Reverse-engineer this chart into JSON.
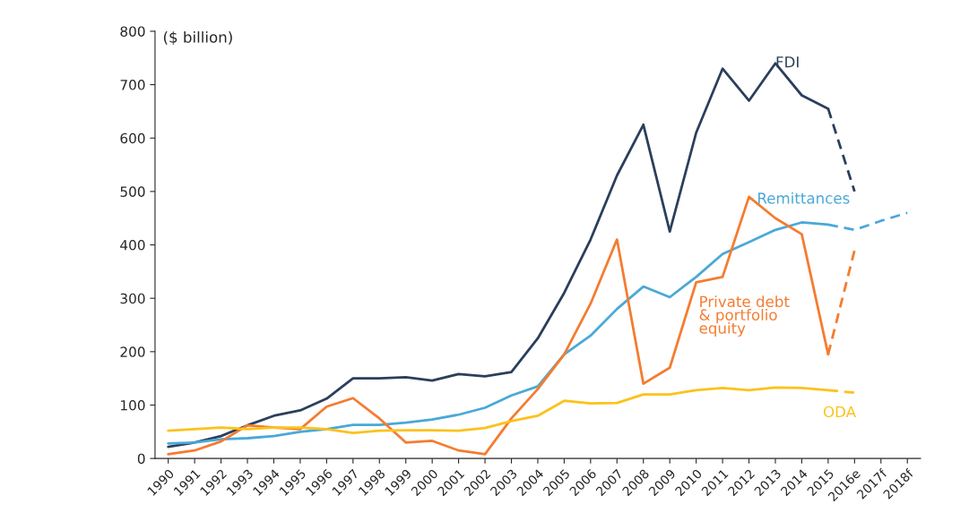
{
  "chart_data": {
    "type": "line",
    "ylabel": "($ billion)",
    "categories": [
      "1990",
      "1991",
      "1992",
      "1993",
      "1994",
      "1995",
      "1996",
      "1997",
      "1998",
      "1999",
      "2000",
      "2001",
      "2002",
      "2003",
      "2004",
      "2005",
      "2006",
      "2007",
      "2008",
      "2009",
      "2010",
      "2011",
      "2012",
      "2013",
      "2014",
      "2015",
      "2016e",
      "2017f",
      "2018f"
    ],
    "ylim": [
      0,
      800
    ],
    "yticks": [
      0,
      100,
      200,
      300,
      400,
      500,
      600,
      700,
      800
    ],
    "grid": false,
    "legend": false,
    "marker": "none",
    "series": [
      {
        "name": "FDI",
        "color": "#2b3f5c",
        "line_style": "solid",
        "values": [
          22,
          30,
          42,
          62,
          80,
          90,
          112,
          150,
          150,
          152,
          146,
          158,
          154,
          162,
          225,
          310,
          410,
          530,
          625,
          425,
          610,
          730,
          670,
          740,
          680,
          655,
          null,
          null,
          null
        ]
      },
      {
        "color": "#2b3f5c",
        "line_style": "dashed",
        "values": [
          null,
          null,
          null,
          null,
          null,
          null,
          null,
          null,
          null,
          null,
          null,
          null,
          null,
          null,
          null,
          null,
          null,
          null,
          null,
          null,
          null,
          null,
          null,
          null,
          null,
          655,
          500,
          null,
          null
        ]
      },
      {
        "name": "Remittances",
        "color": "#4aa8d8",
        "line_style": "solid",
        "values": [
          28,
          30,
          36,
          38,
          42,
          50,
          55,
          63,
          63,
          67,
          73,
          82,
          95,
          118,
          135,
          195,
          230,
          280,
          322,
          302,
          340,
          383,
          405,
          428,
          442,
          438,
          null,
          null,
          null
        ]
      },
      {
        "color": "#4aa8d8",
        "line_style": "dashed",
        "values": [
          null,
          null,
          null,
          null,
          null,
          null,
          null,
          null,
          null,
          null,
          null,
          null,
          null,
          null,
          null,
          null,
          null,
          null,
          null,
          null,
          null,
          null,
          null,
          null,
          null,
          438,
          428,
          445,
          460
        ]
      },
      {
        "name": "Private debt\n& portfolio\nequity",
        "color": "#f47c30",
        "line_style": "solid",
        "values": [
          8,
          15,
          32,
          62,
          58,
          55,
          97,
          113,
          75,
          30,
          33,
          15,
          8,
          75,
          130,
          195,
          290,
          410,
          140,
          170,
          330,
          340,
          490,
          450,
          420,
          195,
          null,
          null,
          null
        ]
      },
      {
        "color": "#f47c30",
        "line_style": "dashed",
        "values": [
          null,
          null,
          null,
          null,
          null,
          null,
          null,
          null,
          null,
          null,
          null,
          null,
          null,
          null,
          null,
          null,
          null,
          null,
          null,
          null,
          null,
          null,
          null,
          null,
          null,
          195,
          390,
          null,
          null
        ]
      },
      {
        "name": "ODA",
        "color": "#fcc21b",
        "line_style": "solid",
        "values": [
          52,
          55,
          58,
          55,
          58,
          58,
          55,
          48,
          52,
          53,
          53,
          52,
          57,
          70,
          80,
          108,
          103,
          104,
          120,
          120,
          128,
          132,
          128,
          133,
          132,
          128,
          null,
          null,
          null
        ]
      },
      {
        "color": "#fcc21b",
        "line_style": "dashed",
        "values": [
          null,
          null,
          null,
          null,
          null,
          null,
          null,
          null,
          null,
          null,
          null,
          null,
          null,
          null,
          null,
          null,
          null,
          null,
          null,
          null,
          null,
          null,
          null,
          null,
          null,
          128,
          123,
          null,
          null
        ]
      }
    ]
  }
}
